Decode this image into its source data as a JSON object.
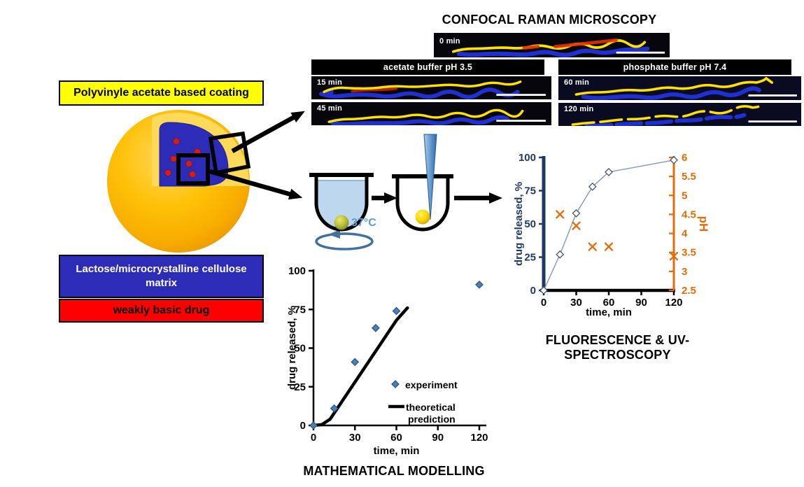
{
  "raman": {
    "title": "CONFOCAL RAMAN MICROSCOPY",
    "panel0": {
      "time_label": "0 min"
    },
    "acetate": {
      "header": "acetate buffer pH 3.5",
      "rows": [
        {
          "time_label": "15 min"
        },
        {
          "time_label": "45 min"
        }
      ]
    },
    "phosphate": {
      "header": "phosphate buffer pH 7.4",
      "rows": [
        {
          "time_label": "60 min"
        },
        {
          "time_label": "120 min"
        }
      ]
    }
  },
  "formulation": {
    "coating_label": "Polyvinyle acetate based coating",
    "matrix_label_line1": "Lactose/microcrystalline cellulose",
    "matrix_label_line2": "matrix",
    "drug_label": "weakly basic drug"
  },
  "dissolution": {
    "temperature": "37°C"
  },
  "colors": {
    "coating": "#ffff00",
    "matrix": "#2c2cb8",
    "drug": "#ff0000",
    "sphere": "#ffc000",
    "drug_released_axis": "#1F3864",
    "ph_axis": "#E36C09",
    "experiment_marker": "#4C7FB5",
    "temperature_text": "#5b9bd5"
  },
  "chart_data": [
    {
      "id": "fluorescence",
      "type": "line",
      "title": "FLUORESCENCE & UV-SPECTROSCOPY",
      "xlabel": "time, min",
      "ylabel": "drug released, %",
      "y2label": "pH",
      "xlim": [
        0,
        120
      ],
      "xticks": [
        0,
        30,
        60,
        90,
        120
      ],
      "ylim": [
        0,
        100
      ],
      "yticks": [
        0,
        25,
        50,
        75,
        100
      ],
      "y2lim": [
        2.5,
        6
      ],
      "y2ticks": [
        2.5,
        3,
        3.5,
        4,
        4.5,
        5,
        5.5,
        6
      ],
      "grid": false,
      "series": [
        {
          "name": "drug released",
          "axis": "y1",
          "marker": "open-diamond",
          "connect": true,
          "color": "#8496B5",
          "x": [
            0,
            15,
            30,
            45,
            60,
            120
          ],
          "y": [
            0,
            27,
            58,
            78,
            89,
            98
          ]
        },
        {
          "name": "pH",
          "axis": "y2",
          "marker": "x",
          "color": "#E36C09",
          "x": [
            15,
            30,
            45,
            60,
            120
          ],
          "y": [
            4.5,
            4.2,
            3.65,
            3.65,
            3.4
          ]
        }
      ]
    },
    {
      "id": "modelling",
      "type": "scatter",
      "title": "MATHEMATICAL MODELLING",
      "xlabel": "time, min",
      "ylabel": "drug released, %",
      "xlim": [
        0,
        120
      ],
      "xticks": [
        0,
        30,
        60,
        90,
        120
      ],
      "ylim": [
        0,
        100
      ],
      "yticks": [
        0,
        25,
        50,
        75,
        100
      ],
      "grid": false,
      "legend_position": "inside-right",
      "series": [
        {
          "name": "experiment",
          "marker": "diamond",
          "color": "#4C7FB5",
          "x": [
            0,
            15,
            30,
            45,
            60,
            120
          ],
          "y": [
            0,
            11,
            41,
            63,
            74,
            91
          ]
        },
        {
          "name": "theoretical prediction",
          "marker": "line",
          "color": "#000000",
          "x": [
            0,
            6,
            12,
            18,
            24,
            30,
            36,
            42,
            48,
            54,
            60,
            65,
            68
          ],
          "y": [
            0,
            0.5,
            4,
            12,
            20,
            28,
            36,
            44,
            52,
            60,
            68,
            73,
            76
          ]
        }
      ]
    }
  ]
}
